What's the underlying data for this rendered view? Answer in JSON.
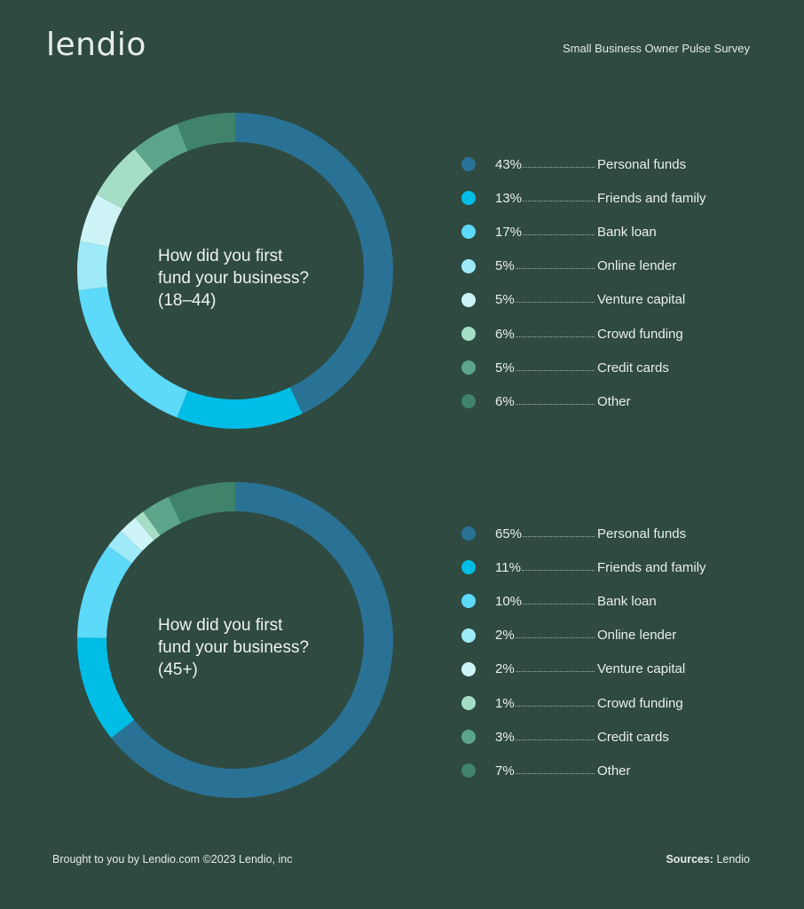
{
  "header": {
    "logo_text": "lendio",
    "survey_title": "Small Business Owner Pulse Survey"
  },
  "colors": {
    "background": "#2f4a40",
    "Personal funds": "#2a7295",
    "Friends and family": "#00bde6",
    "Bank loan": "#5dd9f9",
    "Online lender": "#9feaf8",
    "Venture capital": "#cff4f7",
    "Crowd funding": "#a5dec5",
    "Credit cards": "#5ca58a",
    "Other": "#3f836a"
  },
  "chart_data": [
    {
      "type": "pie",
      "title": "How did you first fund your business? (18–44)",
      "center_label_lines": [
        "How did you first",
        "fund your business?",
        "(18–44)"
      ],
      "categories": [
        "Personal funds",
        "Friends and family",
        "Bank loan",
        "Online lender",
        "Venture capital",
        "Crowd funding",
        "Credit cards",
        "Other"
      ],
      "values": [
        43,
        13,
        17,
        5,
        5,
        6,
        5,
        6
      ],
      "value_labels": [
        "43%",
        "13%",
        "17%",
        "5%",
        "5%",
        "6%",
        "5%",
        "6%"
      ]
    },
    {
      "type": "pie",
      "title": "How did you first fund your business? (45+)",
      "center_label_lines": [
        "How did you first",
        "fund your business?",
        "(45+)"
      ],
      "categories": [
        "Personal funds",
        "Friends and family",
        "Bank loan",
        "Online lender",
        "Venture capital",
        "Crowd funding",
        "Credit cards",
        "Other"
      ],
      "values": [
        65,
        11,
        10,
        2,
        2,
        1,
        3,
        7
      ],
      "value_labels": [
        "65%",
        "11%",
        "10%",
        "2%",
        "2%",
        "1%",
        "3%",
        "7%"
      ]
    }
  ],
  "footer": {
    "left_text": "Brought to you by Lendio.com ©2023 Lendio, inc",
    "sources_label": "Sources:",
    "sources_value": "Lendio"
  }
}
